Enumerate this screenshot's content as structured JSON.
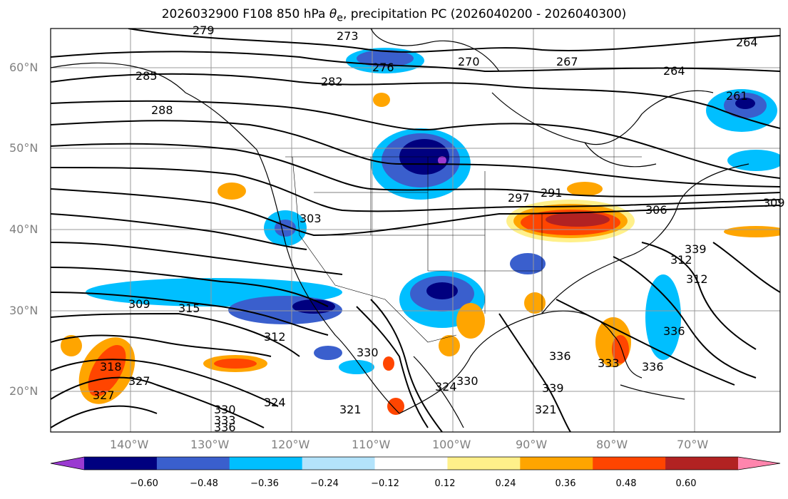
{
  "title": {
    "prefix": "2026032900 F108 850 hPa ",
    "symbol": "θ",
    "subscript": "e",
    "suffix": ", precipitation PC (2026040200 - 2026040300)"
  },
  "latitude_labels": [
    "60°N",
    "50°N",
    "40°N",
    "30°N",
    "20°N"
  ],
  "longitude_labels": [
    "140°W",
    "130°W",
    "120°W",
    "110°W",
    "100°W",
    "90°W",
    "80°W",
    "70°W"
  ],
  "contour_labels": [
    "279",
    "273",
    "276",
    "270",
    "267",
    "264",
    "264",
    "285",
    "282",
    "288",
    "261",
    "297",
    "291",
    "303",
    "306",
    "309",
    "312",
    "312",
    "309",
    "312",
    "315",
    "318",
    "321",
    "324",
    "327",
    "330",
    "333",
    "336",
    "336",
    "339",
    "330",
    "324",
    "321",
    "330",
    "333",
    "336",
    "339",
    "336",
    "327"
  ],
  "colorbar": {
    "ticks": [
      "−0.60",
      "−0.48",
      "−0.36",
      "−0.24",
      "−0.12",
      "0.12",
      "0.24",
      "0.36",
      "0.48",
      "0.60"
    ],
    "colors": [
      "#9a3ad1",
      "#00007f",
      "#3a5fcd",
      "#00bfff",
      "#b3e3fb",
      "#ffffff",
      "#fff08a",
      "#ffa500",
      "#ff4500",
      "#b22222",
      "#ff85ad"
    ]
  }
}
